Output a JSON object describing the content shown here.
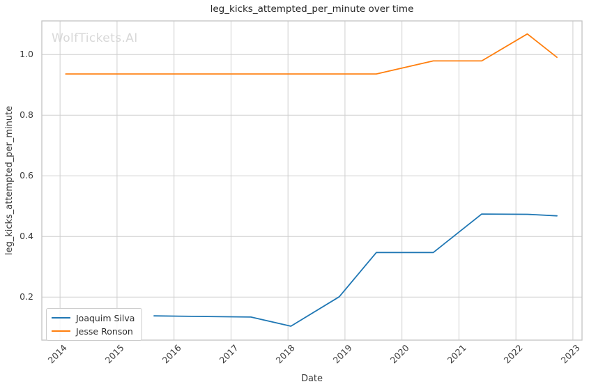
{
  "chart": {
    "title": "leg_kicks_attempted_per_minute over time",
    "xlabel": "Date",
    "ylabel": "leg_kicks_attempted_per_minute",
    "watermark": "WolfTickets.AI"
  },
  "chart_data": {
    "type": "line",
    "title": "leg_kicks_attempted_per_minute over time",
    "xlabel": "Date",
    "ylabel": "leg_kicks_attempted_per_minute",
    "watermark": "WolfTickets.AI",
    "grid": true,
    "legend_position": "lower left",
    "xlim": [
      2013.68,
      2023.16
    ],
    "ylim": [
      0.058,
      1.111
    ],
    "x_ticks": [
      2014,
      2015,
      2016,
      2017,
      2018,
      2019,
      2020,
      2021,
      2022,
      2023
    ],
    "y_ticks": [
      0.2,
      0.4,
      0.6,
      0.8,
      1.0
    ],
    "colors": {
      "grid": "#cfcfcf",
      "spine": "#c4c4c4",
      "tick_text": "#3b3b3b",
      "title_text": "#262626"
    },
    "series": [
      {
        "name": "Joaquim Silva",
        "color": "#1f77b4",
        "points": [
          [
            2015.65,
            0.138
          ],
          [
            2017.35,
            0.134
          ],
          [
            2018.05,
            0.104
          ],
          [
            2018.9,
            0.201
          ],
          [
            2019.55,
            0.347
          ],
          [
            2020.55,
            0.347
          ],
          [
            2021.4,
            0.474
          ],
          [
            2022.2,
            0.473
          ],
          [
            2022.72,
            0.468
          ]
        ]
      },
      {
        "name": "Jesse Ronson",
        "color": "#ff7f0e",
        "points": [
          [
            2014.1,
            0.936
          ],
          [
            2019.55,
            0.936
          ],
          [
            2020.55,
            0.979
          ],
          [
            2021.4,
            0.979
          ],
          [
            2022.2,
            1.068
          ],
          [
            2022.72,
            0.991
          ]
        ]
      }
    ]
  }
}
